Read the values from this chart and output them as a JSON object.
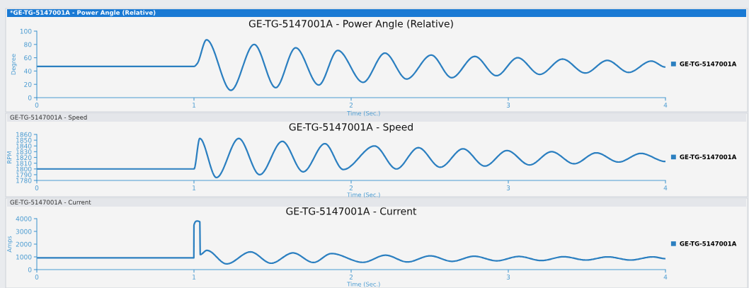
{
  "chart_data": [
    {
      "type": "line",
      "title": "GE-TG-5147001A - Power Angle (Relative)",
      "xlabel": "Time (Sec.)",
      "ylabel": "Degree",
      "annotations": [
        "*GE-TG-5147001A - Power Angle (Relative)"
      ],
      "legend": "right",
      "grid": false,
      "xlim": [
        0,
        4
      ],
      "xticks": [
        0,
        1,
        2,
        3,
        4
      ],
      "ylim": [
        0,
        100
      ],
      "yticks": [
        0,
        20,
        40,
        60,
        80,
        100
      ],
      "series": [
        {
          "name": "GE-TG-5147001A",
          "color": "#2b7fc0",
          "x": [
            0,
            1.0,
            1.02,
            1.08,
            1.235,
            1.383,
            1.52,
            1.647,
            1.794,
            1.915,
            2.076,
            2.215,
            2.353,
            2.51,
            2.64,
            2.787,
            2.925,
            3.06,
            3.2,
            3.345,
            3.49,
            3.63,
            3.766,
            3.91,
            4.0
          ],
          "values": [
            47,
            47,
            51,
            87,
            11,
            80,
            15,
            75,
            19,
            71,
            23,
            67,
            28,
            64,
            30,
            62,
            33,
            60,
            35,
            58,
            37,
            56,
            38,
            55,
            46
          ]
        }
      ]
    },
    {
      "type": "line",
      "title": "GE-TG-5147001A - Speed",
      "xlabel": "Time (Sec.)",
      "ylabel": "RPM",
      "annotations": [
        "GE-TG-5147001A - Speed"
      ],
      "legend": "right",
      "grid": false,
      "xlim": [
        0,
        4
      ],
      "xticks": [
        0,
        1,
        2,
        3,
        4
      ],
      "ylim": [
        1780,
        1860
      ],
      "yticks": [
        1780,
        1790,
        1800,
        1810,
        1820,
        1830,
        1840,
        1850,
        1860
      ],
      "series": [
        {
          "name": "GE-TG-5147001A",
          "color": "#2b7fc0",
          "x": [
            0,
            1.0,
            1.037,
            1.143,
            1.285,
            1.418,
            1.562,
            1.695,
            1.833,
            1.95,
            2.149,
            2.288,
            2.428,
            2.567,
            2.712,
            2.851,
            2.992,
            3.135,
            3.276,
            3.419,
            3.56,
            3.702,
            3.844,
            4.0
          ],
          "values": [
            1800,
            1800,
            1853,
            1785,
            1853,
            1790,
            1848,
            1795,
            1844,
            1799,
            1840,
            1800,
            1837,
            1803,
            1835,
            1805,
            1832,
            1807,
            1830,
            1809,
            1828,
            1812,
            1827,
            1813
          ]
        }
      ]
    },
    {
      "type": "line",
      "title": "GE-TG-5147001A - Current",
      "xlabel": "Time (Sec.)",
      "ylabel": "Amps",
      "annotations": [
        "GE-TG-5147001A - Current"
      ],
      "legend": "right",
      "grid": false,
      "xlim": [
        0,
        4
      ],
      "xticks": [
        0,
        1,
        2,
        3,
        4
      ],
      "ylim": [
        0,
        4000
      ],
      "yticks": [
        0,
        1000,
        2000,
        3000,
        4000
      ],
      "series": [
        {
          "name": "GE-TG-5147001A",
          "color": "#2b7fc0",
          "x": [
            0,
            0.999,
            1.0,
            1.02,
            1.037,
            1.04,
            1.082,
            1.208,
            1.36,
            1.491,
            1.63,
            1.76,
            1.875,
            2.075,
            2.219,
            2.358,
            2.503,
            2.642,
            2.783,
            2.926,
            3.068,
            3.21,
            3.352,
            3.494,
            3.633,
            3.778,
            3.92,
            4.0
          ],
          "values": [
            920,
            920,
            3500,
            3810,
            3750,
            1180,
            1510,
            450,
            1390,
            500,
            1310,
            560,
            1260,
            570,
            1130,
            600,
            1080,
            650,
            1050,
            690,
            1030,
            710,
            1010,
            750,
            1000,
            750,
            1000,
            860
          ]
        }
      ]
    }
  ]
}
